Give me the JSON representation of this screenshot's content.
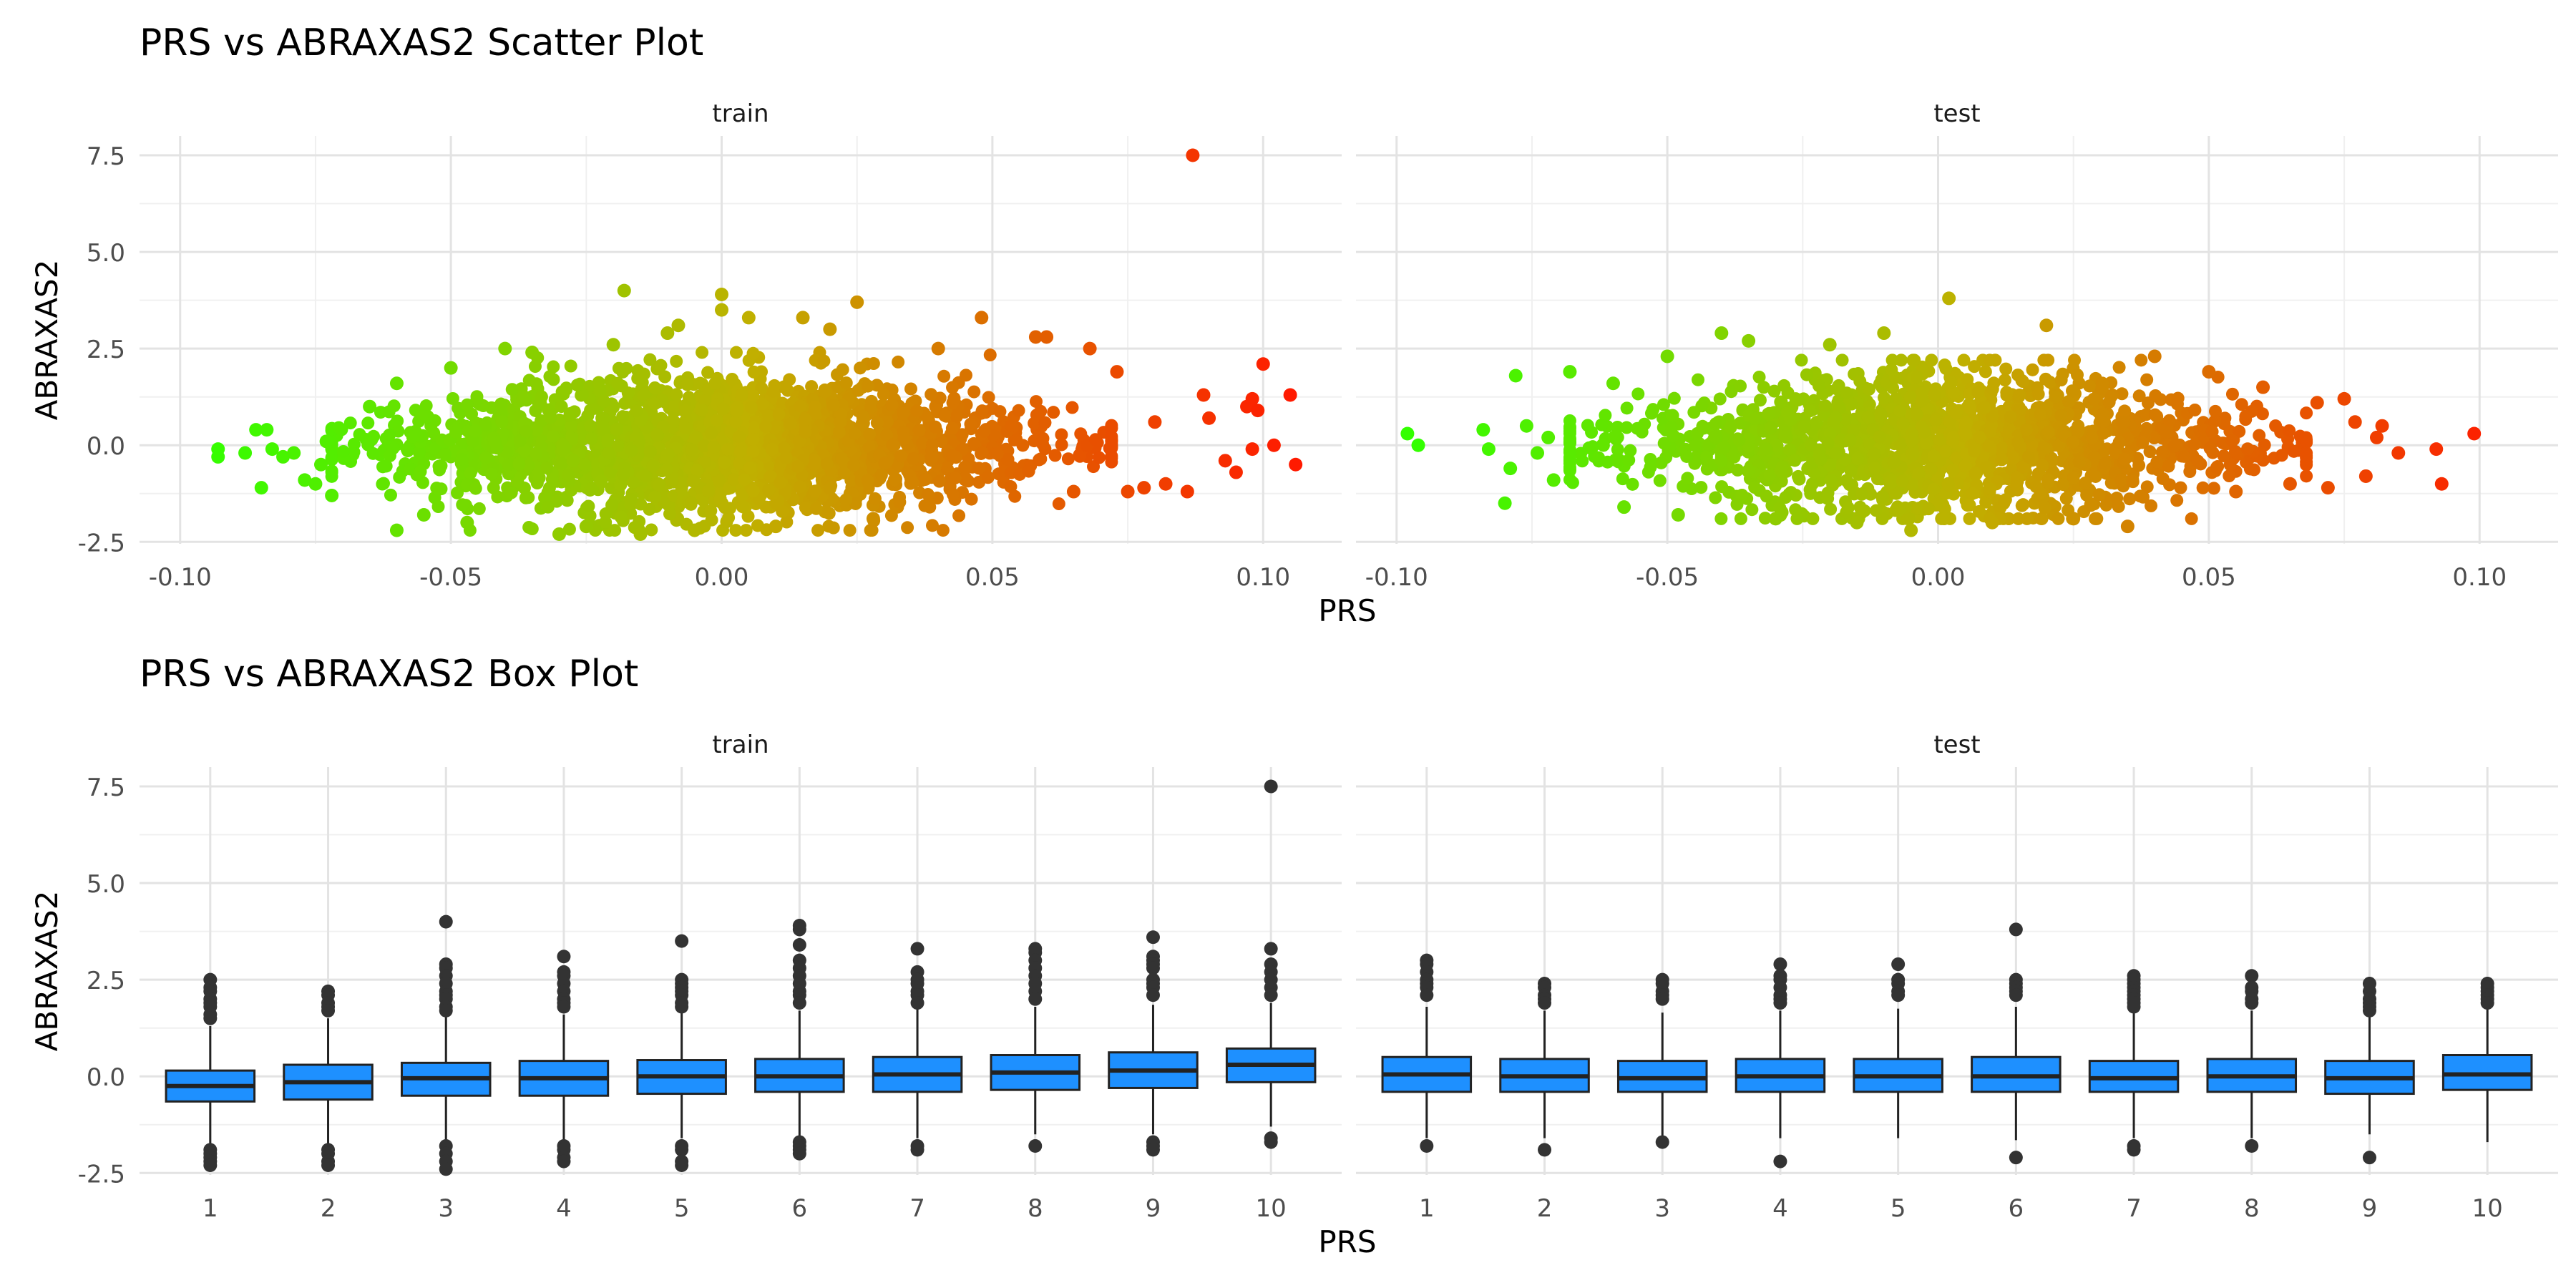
{
  "chart_data": [
    {
      "type": "scatter",
      "title": "PRS vs ABRAXAS2 Scatter Plot",
      "xlabel": "PRS",
      "ylabel": "ABRAXAS2",
      "grid": true,
      "legend": "none",
      "color_scale": {
        "low": "#33ff00",
        "mid": "#c0b000",
        "high": "#ff1a00",
        "maps": "PRS"
      },
      "xlim": [
        -0.1075,
        0.1145
      ],
      "ylim": [
        -2.55,
        8.0
      ],
      "x_ticks": [
        -0.1,
        -0.05,
        0.0,
        0.05,
        0.1
      ],
      "x_tick_labels": [
        "-0.10",
        "-0.05",
        "0.00",
        "0.05",
        "0.10"
      ],
      "y_ticks": [
        -2.5,
        0.0,
        2.5,
        5.0,
        7.5
      ],
      "y_tick_labels": [
        "-2.5",
        "0.0",
        "2.5",
        "5.0",
        "7.5"
      ],
      "panels": [
        {
          "name": "train",
          "bulk_summary": {
            "x_range": [
              -0.072,
              0.072
            ],
            "y_range": [
              -2.2,
              2.4
            ],
            "n_bulk_points_drawn": 2200
          },
          "points": [
            [
              -0.093,
              -0.3
            ],
            [
              -0.093,
              -0.1
            ],
            [
              -0.088,
              -0.2
            ],
            [
              -0.086,
              0.4
            ],
            [
              -0.084,
              0.4
            ],
            [
              -0.085,
              -1.1
            ],
            [
              -0.083,
              -0.1
            ],
            [
              -0.081,
              -0.3
            ],
            [
              -0.079,
              -0.2
            ],
            [
              -0.077,
              -0.9
            ],
            [
              -0.075,
              -1.0
            ],
            [
              -0.074,
              -0.5
            ],
            [
              -0.073,
              0.1
            ],
            [
              -0.072,
              -1.3
            ],
            [
              -0.065,
              1.0
            ],
            [
              -0.06,
              1.6
            ],
            [
              -0.06,
              -2.2
            ],
            [
              -0.055,
              -1.8
            ],
            [
              -0.05,
              2.0
            ],
            [
              -0.047,
              -2.0
            ],
            [
              -0.04,
              2.5
            ],
            [
              -0.035,
              2.4
            ],
            [
              -0.03,
              -2.3
            ],
            [
              -0.025,
              -2.1
            ],
            [
              -0.02,
              2.6
            ],
            [
              -0.018,
              4.0
            ],
            [
              -0.015,
              -2.3
            ],
            [
              -0.01,
              2.9
            ],
            [
              -0.008,
              3.1
            ],
            [
              -0.005,
              -2.2
            ],
            [
              0.0,
              3.9
            ],
            [
              0.0,
              3.5
            ],
            [
              0.005,
              3.3
            ],
            [
              0.01,
              -2.1
            ],
            [
              0.015,
              3.3
            ],
            [
              0.02,
              3.0
            ],
            [
              0.025,
              3.7
            ],
            [
              0.028,
              -1.9
            ],
            [
              0.04,
              2.5
            ],
            [
              0.048,
              3.3
            ],
            [
              0.058,
              2.8
            ],
            [
              0.06,
              2.8
            ],
            [
              0.065,
              -1.2
            ],
            [
              0.068,
              2.5
            ],
            [
              0.073,
              1.9
            ],
            [
              0.075,
              -1.2
            ],
            [
              0.078,
              -1.1
            ],
            [
              0.08,
              0.6
            ],
            [
              0.082,
              -1.0
            ],
            [
              0.086,
              -1.2
            ],
            [
              0.087,
              7.5
            ],
            [
              0.089,
              1.3
            ],
            [
              0.09,
              0.7
            ],
            [
              0.093,
              -0.4
            ],
            [
              0.095,
              -0.7
            ],
            [
              0.097,
              1.0
            ],
            [
              0.098,
              1.2
            ],
            [
              0.099,
              0.9
            ],
            [
              0.1,
              2.1
            ],
            [
              0.098,
              -0.1
            ],
            [
              0.102,
              0.0
            ],
            [
              0.105,
              1.3
            ],
            [
              0.106,
              -0.5
            ]
          ]
        },
        {
          "name": "test",
          "bulk_summary": {
            "x_range": [
              -0.068,
              0.068
            ],
            "y_range": [
              -1.9,
              2.2
            ],
            "n_bulk_points_drawn": 1700
          },
          "points": [
            [
              -0.098,
              0.3
            ],
            [
              -0.096,
              0.0
            ],
            [
              -0.084,
              0.4
            ],
            [
              -0.083,
              -0.1
            ],
            [
              -0.08,
              -1.5
            ],
            [
              -0.079,
              -0.6
            ],
            [
              -0.078,
              1.8
            ],
            [
              -0.076,
              0.5
            ],
            [
              -0.074,
              -0.2
            ],
            [
              -0.072,
              0.2
            ],
            [
              -0.071,
              -0.9
            ],
            [
              -0.068,
              1.9
            ],
            [
              -0.06,
              1.6
            ],
            [
              -0.058,
              -1.6
            ],
            [
              -0.05,
              2.3
            ],
            [
              -0.048,
              -1.8
            ],
            [
              -0.04,
              2.9
            ],
            [
              -0.035,
              2.7
            ],
            [
              -0.03,
              -1.9
            ],
            [
              -0.02,
              2.6
            ],
            [
              -0.015,
              -2.0
            ],
            [
              -0.01,
              2.9
            ],
            [
              -0.005,
              -2.2
            ],
            [
              0.002,
              3.8
            ],
            [
              0.01,
              -2.0
            ],
            [
              0.02,
              3.1
            ],
            [
              0.025,
              -1.9
            ],
            [
              0.035,
              -2.1
            ],
            [
              0.04,
              2.3
            ],
            [
              0.05,
              1.9
            ],
            [
              0.055,
              -1.2
            ],
            [
              0.06,
              1.5
            ],
            [
              0.065,
              -1.0
            ],
            [
              0.07,
              1.1
            ],
            [
              0.072,
              -1.1
            ],
            [
              0.075,
              1.2
            ],
            [
              0.077,
              0.6
            ],
            [
              0.079,
              -0.8
            ],
            [
              0.081,
              0.2
            ],
            [
              0.082,
              0.5
            ],
            [
              0.085,
              -0.2
            ],
            [
              0.092,
              -0.1
            ],
            [
              0.093,
              -1.0
            ],
            [
              0.099,
              0.3
            ]
          ]
        }
      ]
    },
    {
      "type": "box",
      "title": "PRS vs ABRAXAS2 Box Plot",
      "xlabel": "PRS",
      "ylabel": "ABRAXAS2",
      "grid": true,
      "legend": "none",
      "box_fill": "#1e90ff",
      "box_line": "#222222",
      "categories": [
        "1",
        "2",
        "3",
        "4",
        "5",
        "6",
        "7",
        "8",
        "9",
        "10"
      ],
      "ylim": [
        -2.55,
        8.0
      ],
      "y_ticks": [
        -2.5,
        0.0,
        2.5,
        5.0,
        7.5
      ],
      "y_tick_labels": [
        "-2.5",
        "0.0",
        "2.5",
        "5.0",
        "7.5"
      ],
      "panels": [
        {
          "name": "train",
          "boxes": [
            {
              "q1": -0.65,
              "median": -0.25,
              "q3": 0.15,
              "whisker_low": -1.8,
              "whisker_high": 1.3,
              "outliers": [
                2.5,
                2.3,
                2.2,
                2.0,
                1.9,
                1.8,
                1.6,
                1.5,
                -1.9,
                -2.0,
                -2.1,
                -2.2,
                -2.3
              ]
            },
            {
              "q1": -0.6,
              "median": -0.15,
              "q3": 0.3,
              "whisker_low": -1.8,
              "whisker_high": 1.5,
              "outliers": [
                2.2,
                2.1,
                1.9,
                1.8,
                1.7,
                -1.9,
                -2.0,
                -2.2,
                -2.3
              ]
            },
            {
              "q1": -0.5,
              "median": -0.05,
              "q3": 0.35,
              "whisker_low": -1.7,
              "whisker_high": 1.55,
              "outliers": [
                4.0,
                2.9,
                2.8,
                2.6,
                2.4,
                2.2,
                2.1,
                2.0,
                1.8,
                1.7,
                -1.8,
                -2.0,
                -2.2,
                -2.4
              ]
            },
            {
              "q1": -0.5,
              "median": -0.05,
              "q3": 0.4,
              "whisker_low": -1.7,
              "whisker_high": 1.6,
              "outliers": [
                3.1,
                2.7,
                2.6,
                2.4,
                2.2,
                2.0,
                1.9,
                1.8,
                -1.8,
                -1.9,
                -2.1,
                -2.2
              ]
            },
            {
              "q1": -0.45,
              "median": 0.0,
              "q3": 0.42,
              "whisker_low": -1.6,
              "whisker_high": 1.7,
              "outliers": [
                3.5,
                2.5,
                2.4,
                2.3,
                2.2,
                2.1,
                1.9,
                1.8,
                -1.8,
                -1.9,
                -2.2,
                -2.3
              ]
            },
            {
              "q1": -0.4,
              "median": 0.0,
              "q3": 0.45,
              "whisker_low": -1.55,
              "whisker_high": 1.7,
              "outliers": [
                3.9,
                3.8,
                3.4,
                3.0,
                2.8,
                2.6,
                2.4,
                2.2,
                2.1,
                1.9,
                -1.7,
                -1.8,
                -1.9,
                -2.0
              ]
            },
            {
              "q1": -0.4,
              "median": 0.05,
              "q3": 0.5,
              "whisker_low": -1.6,
              "whisker_high": 1.75,
              "outliers": [
                3.3,
                2.7,
                2.5,
                2.4,
                2.2,
                2.1,
                1.9,
                -1.8,
                -1.9
              ]
            },
            {
              "q1": -0.35,
              "median": 0.1,
              "q3": 0.55,
              "whisker_low": -1.5,
              "whisker_high": 1.8,
              "outliers": [
                3.3,
                3.2,
                3.0,
                2.8,
                2.6,
                2.4,
                2.2,
                2.0,
                -1.8
              ]
            },
            {
              "q1": -0.3,
              "median": 0.15,
              "q3": 0.62,
              "whisker_low": -1.5,
              "whisker_high": 1.85,
              "outliers": [
                3.6,
                3.1,
                3.0,
                2.9,
                2.8,
                2.5,
                2.4,
                2.3,
                2.1,
                -1.7,
                -1.8,
                -1.9
              ]
            },
            {
              "q1": -0.15,
              "median": 0.3,
              "q3": 0.72,
              "whisker_low": -1.3,
              "whisker_high": 1.9,
              "outliers": [
                7.5,
                3.3,
                2.9,
                2.7,
                2.5,
                2.3,
                2.1,
                -1.6,
                -1.7
              ]
            }
          ]
        },
        {
          "name": "test",
          "boxes": [
            {
              "q1": -0.4,
              "median": 0.05,
              "q3": 0.5,
              "whisker_low": -1.6,
              "whisker_high": 1.8,
              "outliers": [
                3.0,
                2.9,
                2.7,
                2.5,
                2.4,
                2.3,
                2.1,
                -1.8
              ]
            },
            {
              "q1": -0.4,
              "median": 0.0,
              "q3": 0.45,
              "whisker_low": -1.6,
              "whisker_high": 1.7,
              "outliers": [
                2.4,
                2.3,
                2.1,
                2.0,
                1.9,
                -1.9
              ]
            },
            {
              "q1": -0.4,
              "median": -0.05,
              "q3": 0.4,
              "whisker_low": -1.55,
              "whisker_high": 1.65,
              "outliers": [
                2.5,
                2.4,
                2.2,
                2.1,
                2.0,
                -1.7
              ]
            },
            {
              "q1": -0.4,
              "median": 0.0,
              "q3": 0.45,
              "whisker_low": -1.6,
              "whisker_high": 1.7,
              "outliers": [
                2.9,
                2.6,
                2.5,
                2.3,
                2.1,
                2.0,
                1.9,
                -2.2
              ]
            },
            {
              "q1": -0.4,
              "median": 0.0,
              "q3": 0.45,
              "whisker_low": -1.6,
              "whisker_high": 1.75,
              "outliers": [
                2.9,
                2.5,
                2.4,
                2.2,
                2.1
              ]
            },
            {
              "q1": -0.4,
              "median": 0.0,
              "q3": 0.5,
              "whisker_low": -1.65,
              "whisker_high": 1.8,
              "outliers": [
                3.8,
                2.5,
                2.4,
                2.3,
                2.2,
                2.1,
                -2.1
              ]
            },
            {
              "q1": -0.4,
              "median": -0.05,
              "q3": 0.4,
              "whisker_low": -1.6,
              "whisker_high": 1.65,
              "outliers": [
                2.6,
                2.5,
                2.4,
                2.3,
                2.2,
                2.1,
                2.0,
                1.9,
                1.8,
                -1.8,
                -1.9
              ]
            },
            {
              "q1": -0.4,
              "median": 0.0,
              "q3": 0.45,
              "whisker_low": -1.6,
              "whisker_high": 1.7,
              "outliers": [
                2.6,
                2.3,
                2.2,
                2.0,
                1.9,
                -1.8
              ]
            },
            {
              "q1": -0.45,
              "median": -0.05,
              "q3": 0.4,
              "whisker_low": -1.5,
              "whisker_high": 1.6,
              "outliers": [
                2.4,
                2.2,
                2.0,
                1.9,
                1.8,
                1.7,
                -2.1
              ]
            },
            {
              "q1": -0.35,
              "median": 0.05,
              "q3": 0.55,
              "whisker_low": -1.7,
              "whisker_high": 1.8,
              "outliers": [
                2.4,
                2.3,
                2.2,
                2.1,
                2.0,
                1.9
              ]
            }
          ]
        }
      ]
    }
  ]
}
